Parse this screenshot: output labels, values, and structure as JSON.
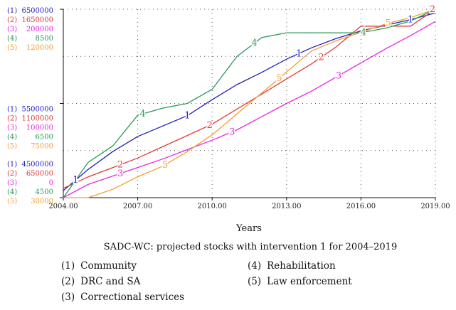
{
  "chart_data": {
    "type": "line",
    "title": "SADC-WC: projected stocks with intervention 1 for 2004–2019",
    "xlabel": "Years",
    "xlim": [
      2004,
      2019
    ],
    "x_ticks": [
      2004,
      2007,
      2010,
      2013,
      2016,
      2019
    ],
    "x_tick_labels": [
      "2004.00",
      "2007.00",
      "2010.00",
      "2013.00",
      "2016.00",
      "2019.00"
    ],
    "y_axis_labels": [
      {
        "level": "top",
        "values": [
          "(1)  6500000",
          "(2)  1650000",
          "(3)  200000",
          "(4)  8500",
          "(5)  120000"
        ]
      },
      {
        "level": "middle",
        "values": [
          "(1)  5500000",
          "(2)  1100000",
          "(3)  100000",
          "(4)  6500",
          "(5)  75000"
        ]
      },
      {
        "level": "bottom",
        "values": [
          "(1)  4500000",
          "(2)  650000",
          "(3)  0",
          "(4)  4500",
          "(5)  30000"
        ]
      }
    ],
    "x": [
      2004,
      2005,
      2006,
      2007,
      2008,
      2009,
      2010,
      2011,
      2012,
      2013,
      2014,
      2015,
      2016,
      2017,
      2018,
      2019
    ],
    "series": [
      {
        "id": "1",
        "name": "Community",
        "color": "#1f1fbf",
        "ylim": [
          4500000,
          6500000
        ],
        "values": [
          4575000,
          4800000,
          4990000,
          5150000,
          5260000,
          5370000,
          5540000,
          5700000,
          5830000,
          5970000,
          6090000,
          6190000,
          6270000,
          6330000,
          6390000,
          6460000
        ],
        "marker_x": [
          2004.5,
          2009.0,
          2013.5,
          2018.0
        ]
      },
      {
        "id": "2",
        "name": "DRC and SA",
        "color": "#e03a3a",
        "ylim": [
          650000,
          1650000
        ],
        "values": [
          700000,
          760000,
          810000,
          860000,
          920000,
          980000,
          1040000,
          1120000,
          1200000,
          1280000,
          1360000,
          1450000,
          1560000,
          1560000,
          1560000,
          1650000
        ],
        "marker_x": [
          2006.3,
          2009.9,
          2014.4,
          2019.0
        ]
      },
      {
        "id": "3",
        "name": "Correctional services",
        "color": "#e626e6",
        "ylim": [
          0,
          200000
        ],
        "values": [
          0,
          14000,
          23000,
          32000,
          41000,
          51000,
          61000,
          72000,
          86000,
          100000,
          113000,
          128000,
          143000,
          158000,
          172000,
          187000
        ],
        "marker_x": [
          2006.3,
          2010.8,
          2015.1
        ]
      },
      {
        "id": "4",
        "name": "Rehabilitation",
        "color": "#2a9a5a",
        "ylim": [
          4500,
          8500
        ],
        "values": [
          4500,
          5250,
          5600,
          6250,
          6400,
          6500,
          6800,
          7500,
          7900,
          8000,
          8000,
          8000,
          8000,
          8100,
          8250,
          8500
        ],
        "marker_x": [
          2007.2,
          2011.7,
          2016.1
        ]
      },
      {
        "id": "5",
        "name": "Law enforcement",
        "color": "#f0a030",
        "ylim": [
          30000,
          120000
        ],
        "values": [
          30000,
          30000,
          34000,
          40000,
          45000,
          52000,
          60000,
          70000,
          80000,
          90000,
          100000,
          105000,
          109000,
          113000,
          116000,
          120000
        ],
        "marker_x": [
          2008.1,
          2012.7,
          2017.1
        ]
      }
    ],
    "grid": true,
    "legend_position": "bottom"
  },
  "legend": [
    {
      "num": "(1)",
      "label": "Community"
    },
    {
      "num": "(2)",
      "label": "DRC and SA"
    },
    {
      "num": "(3)",
      "label": "Correctional services"
    },
    {
      "num": "(4)",
      "label": "Rehabilitation"
    },
    {
      "num": "(5)",
      "label": "Law enforcement"
    }
  ]
}
